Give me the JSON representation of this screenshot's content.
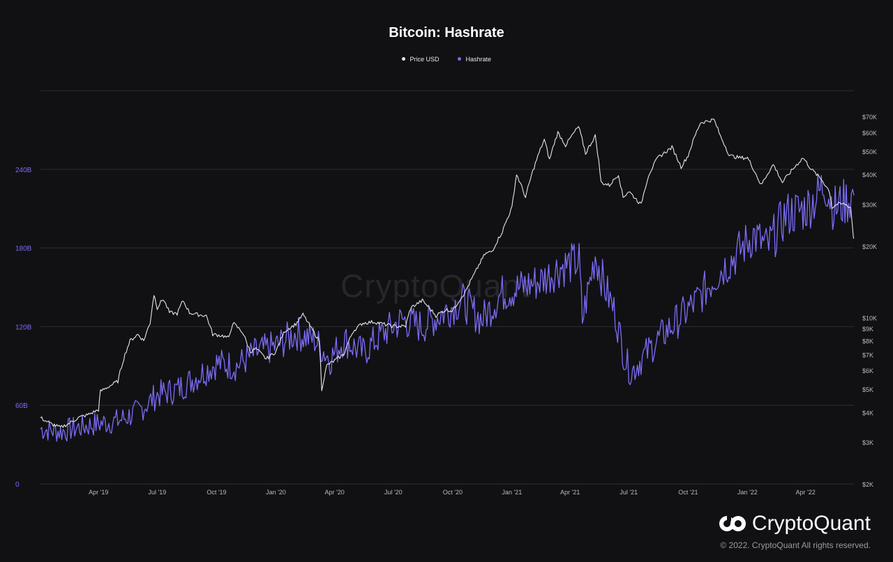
{
  "chart_data": {
    "type": "line",
    "title": "Bitcoin: Hashrate",
    "legend_placement": "top-center",
    "grid": true,
    "x_ticks": [
      "Apr '19",
      "Jul '19",
      "Oct '19",
      "Jan '20",
      "Apr '20",
      "Jul '20",
      "Oct '20",
      "Jan '21",
      "Apr '21",
      "Jul '21",
      "Oct '21",
      "Jan '22",
      "Apr '22"
    ],
    "x_range": [
      "2019-01-01",
      "2022-06-15"
    ],
    "y_left": {
      "label": "",
      "ticks": [
        "0",
        "60B",
        "120B",
        "180B",
        "240B"
      ],
      "ylim": [
        0,
        300
      ],
      "unit": "B"
    },
    "y_right": {
      "label": "",
      "scale": "log",
      "ticks": [
        "$2K",
        "$3K",
        "$4K",
        "$5K",
        "$6K",
        "$7K",
        "$8K",
        "$9K",
        "$10K",
        "$20K",
        "$30K",
        "$40K",
        "$50K",
        "$60K",
        "$70K"
      ],
      "ylim": [
        2000,
        90000
      ]
    },
    "series": [
      {
        "name": "Price USD",
        "color": "#e6e6e6",
        "axis": "right",
        "points": [
          [
            "2019-01-01",
            3800
          ],
          [
            "2019-01-15",
            3600
          ],
          [
            "2019-02-01",
            3450
          ],
          [
            "2019-02-15",
            3600
          ],
          [
            "2019-03-01",
            3800
          ],
          [
            "2019-03-15",
            3900
          ],
          [
            "2019-04-01",
            4100
          ],
          [
            "2019-04-04",
            4900
          ],
          [
            "2019-04-15",
            5100
          ],
          [
            "2019-05-01",
            5400
          ],
          [
            "2019-05-12",
            7000
          ],
          [
            "2019-05-20",
            8000
          ],
          [
            "2019-06-01",
            8500
          ],
          [
            "2019-06-10",
            8000
          ],
          [
            "2019-06-20",
            9500
          ],
          [
            "2019-06-26",
            12500
          ],
          [
            "2019-07-01",
            11000
          ],
          [
            "2019-07-10",
            12000
          ],
          [
            "2019-07-20",
            10500
          ],
          [
            "2019-08-01",
            10400
          ],
          [
            "2019-08-10",
            11800
          ],
          [
            "2019-08-20",
            10500
          ],
          [
            "2019-09-01",
            10300
          ],
          [
            "2019-09-15",
            10200
          ],
          [
            "2019-09-25",
            8500
          ],
          [
            "2019-10-10",
            8400
          ],
          [
            "2019-10-20",
            8200
          ],
          [
            "2019-10-26",
            9500
          ],
          [
            "2019-11-10",
            8700
          ],
          [
            "2019-11-22",
            7200
          ],
          [
            "2019-12-01",
            7400
          ],
          [
            "2019-12-17",
            6700
          ],
          [
            "2020-01-01",
            7200
          ],
          [
            "2020-01-15",
            8800
          ],
          [
            "2020-02-01",
            9400
          ],
          [
            "2020-02-12",
            10300
          ],
          [
            "2020-02-25",
            9000
          ],
          [
            "2020-03-08",
            8000
          ],
          [
            "2020-03-12",
            5000
          ],
          [
            "2020-03-20",
            6300
          ],
          [
            "2020-04-01",
            6600
          ],
          [
            "2020-04-15",
            7000
          ],
          [
            "2020-04-30",
            8800
          ],
          [
            "2020-05-15",
            9500
          ],
          [
            "2020-06-01",
            9600
          ],
          [
            "2020-06-15",
            9400
          ],
          [
            "2020-07-01",
            9200
          ],
          [
            "2020-07-20",
            9200
          ],
          [
            "2020-07-28",
            11000
          ],
          [
            "2020-08-15",
            11800
          ],
          [
            "2020-09-05",
            10200
          ],
          [
            "2020-09-20",
            10800
          ],
          [
            "2020-10-01",
            10700
          ],
          [
            "2020-10-21",
            12900
          ],
          [
            "2020-11-05",
            15500
          ],
          [
            "2020-11-20",
            18500
          ],
          [
            "2020-12-01",
            19000
          ],
          [
            "2020-12-17",
            23000
          ],
          [
            "2021-01-01",
            29000
          ],
          [
            "2021-01-08",
            40000
          ],
          [
            "2021-01-22",
            32000
          ],
          [
            "2021-02-08",
            46000
          ],
          [
            "2021-02-20",
            56000
          ],
          [
            "2021-02-28",
            46000
          ],
          [
            "2021-03-13",
            60000
          ],
          [
            "2021-03-25",
            53000
          ],
          [
            "2021-04-14",
            63500
          ],
          [
            "2021-04-25",
            49000
          ],
          [
            "2021-05-10",
            58000
          ],
          [
            "2021-05-19",
            37000
          ],
          [
            "2021-06-01",
            36000
          ],
          [
            "2021-06-15",
            40000
          ],
          [
            "2021-06-22",
            32000
          ],
          [
            "2021-07-01",
            34000
          ],
          [
            "2021-07-20",
            29800
          ],
          [
            "2021-08-01",
            40000
          ],
          [
            "2021-08-15",
            47000
          ],
          [
            "2021-09-06",
            52000
          ],
          [
            "2021-09-20",
            43000
          ],
          [
            "2021-10-01",
            48000
          ],
          [
            "2021-10-20",
            66000
          ],
          [
            "2021-11-10",
            68000
          ],
          [
            "2021-11-20",
            58000
          ],
          [
            "2021-12-04",
            48000
          ],
          [
            "2021-12-20",
            47000
          ],
          [
            "2022-01-01",
            47000
          ],
          [
            "2022-01-22",
            36000
          ],
          [
            "2022-02-10",
            44000
          ],
          [
            "2022-02-24",
            37000
          ],
          [
            "2022-03-28",
            47000
          ],
          [
            "2022-04-10",
            42000
          ],
          [
            "2022-04-26",
            38000
          ],
          [
            "2022-05-08",
            34000
          ],
          [
            "2022-05-12",
            29000
          ],
          [
            "2022-05-20",
            30000
          ],
          [
            "2022-06-01",
            30000
          ],
          [
            "2022-06-10",
            29000
          ],
          [
            "2022-06-14",
            22000
          ],
          [
            "2022-06-15",
            21500
          ]
        ]
      },
      {
        "name": "Hashrate",
        "color": "#7b6cf6",
        "axis": "left",
        "points": [
          [
            "2019-01-01",
            42
          ],
          [
            "2019-02-01",
            40
          ],
          [
            "2019-03-01",
            43
          ],
          [
            "2019-04-01",
            46
          ],
          [
            "2019-05-01",
            48
          ],
          [
            "2019-06-01",
            55
          ],
          [
            "2019-07-01",
            68
          ],
          [
            "2019-08-01",
            72
          ],
          [
            "2019-09-01",
            82
          ],
          [
            "2019-10-01",
            92
          ],
          [
            "2019-11-01",
            90
          ],
          [
            "2019-12-01",
            100
          ],
          [
            "2020-01-01",
            105
          ],
          [
            "2020-02-01",
            115
          ],
          [
            "2020-03-01",
            110
          ],
          [
            "2020-03-25",
            95
          ],
          [
            "2020-04-15",
            110
          ],
          [
            "2020-05-15",
            100
          ],
          [
            "2020-06-15",
            115
          ],
          [
            "2020-07-15",
            125
          ],
          [
            "2020-08-15",
            120
          ],
          [
            "2020-09-15",
            130
          ],
          [
            "2020-10-15",
            140
          ],
          [
            "2020-11-15",
            125
          ],
          [
            "2020-12-15",
            145
          ],
          [
            "2021-01-15",
            150
          ],
          [
            "2021-02-15",
            155
          ],
          [
            "2021-03-15",
            165
          ],
          [
            "2021-04-15",
            170
          ],
          [
            "2021-04-20",
            125
          ],
          [
            "2021-05-10",
            175
          ],
          [
            "2021-05-25",
            150
          ],
          [
            "2021-06-10",
            130
          ],
          [
            "2021-06-25",
            95
          ],
          [
            "2021-07-05",
            85
          ],
          [
            "2021-07-20",
            95
          ],
          [
            "2021-08-15",
            110
          ],
          [
            "2021-09-15",
            125
          ],
          [
            "2021-10-15",
            140
          ],
          [
            "2021-11-15",
            160
          ],
          [
            "2021-12-15",
            175
          ],
          [
            "2022-01-10",
            190
          ],
          [
            "2022-02-01",
            180
          ],
          [
            "2022-03-01",
            205
          ],
          [
            "2022-04-01",
            210
          ],
          [
            "2022-04-20",
            220
          ],
          [
            "2022-05-01",
            230
          ],
          [
            "2022-05-15",
            210
          ],
          [
            "2022-06-01",
            215
          ],
          [
            "2022-06-15",
            220
          ]
        ]
      }
    ]
  },
  "footer": {
    "watermark": "CryptoQuant",
    "brand": "CryptoQuant",
    "copyright": "© 2022. CryptoQuant All rights reserved."
  }
}
